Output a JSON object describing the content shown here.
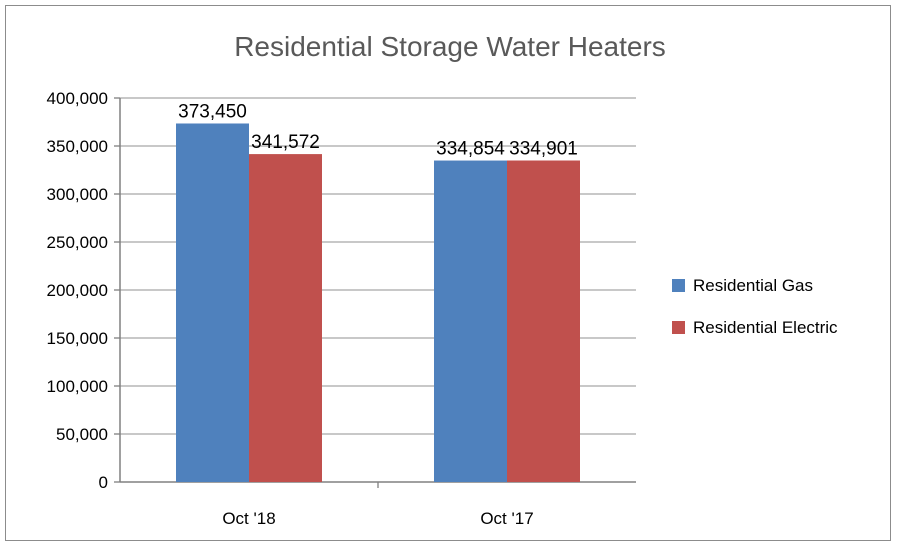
{
  "chart_data": {
    "type": "bar",
    "title": "Residential Storage Water Heaters",
    "xlabel": "",
    "ylabel": "",
    "categories": [
      "Oct '18",
      "Oct '17"
    ],
    "series": [
      {
        "name": "Residential Gas",
        "values": [
          373450,
          334854
        ],
        "labels": [
          "373,450",
          "334,854"
        ],
        "color": "#4f81bd"
      },
      {
        "name": "Residential Electric",
        "values": [
          341572,
          334901
        ],
        "labels": [
          "341,572",
          "334,901"
        ],
        "color": "#c0504d"
      }
    ],
    "ylim": [
      0,
      400000
    ],
    "yticks": [
      "0",
      "50,000",
      "100,000",
      "150,000",
      "200,000",
      "250,000",
      "300,000",
      "350,000",
      "400,000"
    ],
    "grid": true,
    "legend_position": "right"
  }
}
